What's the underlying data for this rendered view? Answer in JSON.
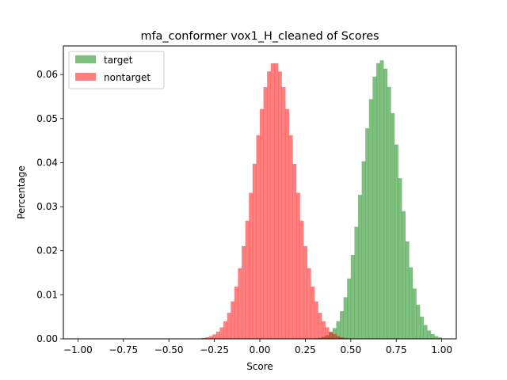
{
  "chart_data": {
    "type": "bar",
    "title": "mfa_conformer vox1_H_cleaned of Scores",
    "xlabel": "Score",
    "ylabel": "Percentage",
    "xlim": [
      -1.08,
      1.08
    ],
    "ylim": [
      0,
      0.0665
    ],
    "x_ticks": [
      -1.0,
      -0.75,
      -0.5,
      -0.25,
      0.0,
      0.25,
      0.5,
      0.75,
      1.0
    ],
    "x_tick_labels": [
      "−1.00",
      "−0.75",
      "−0.50",
      "−0.25",
      "0.00",
      "0.25",
      "0.50",
      "0.75",
      "1.00"
    ],
    "y_ticks": [
      0,
      0.01,
      0.02,
      0.03,
      0.04,
      0.05,
      0.06
    ],
    "y_tick_labels": [
      "0.00",
      "0.01",
      "0.02",
      "0.03",
      "0.04",
      "0.05",
      "0.06"
    ],
    "legend_position": "upper-left",
    "grid": false,
    "series": [
      {
        "name": "target",
        "color": "#008000",
        "opacity": 0.5,
        "center": 0.665,
        "sigma": 0.1,
        "peak": 0.0633,
        "x_range": [
          0.0,
          1.0
        ]
      },
      {
        "name": "nontarget",
        "color": "#ff0000",
        "opacity": 0.5,
        "center": 0.08,
        "sigma": 0.115,
        "peak": 0.0628,
        "x_range": [
          -1.0,
          1.0
        ]
      }
    ],
    "bin_width": 0.02
  }
}
